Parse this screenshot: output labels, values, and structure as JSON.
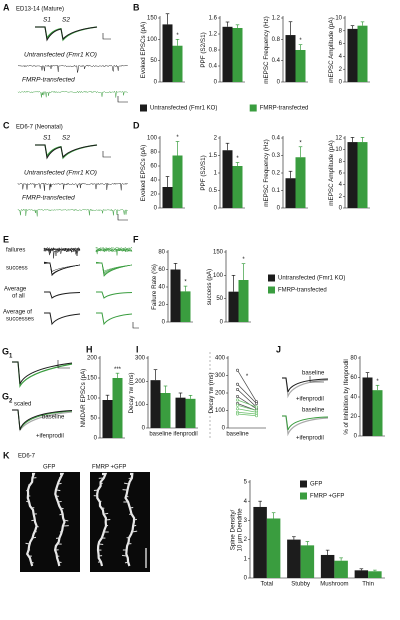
{
  "panels": {
    "A": {
      "letter": "A",
      "title": "ED13-14 (Mature)",
      "s1": "S1",
      "s2": "S2",
      "untransfected": "Untransfected (Fmr1 KO)",
      "transfected": "FMRP-transfected"
    },
    "B": {
      "letter": "B"
    },
    "C": {
      "letter": "C",
      "title": "ED6-7 (Neonatal)",
      "s1": "S1",
      "s2": "S2",
      "untransfected": "Untransfected (Fmr1 KO)",
      "transfected": "FMRP-transfected"
    },
    "D": {
      "letter": "D"
    },
    "E": {
      "letter": "E",
      "failures": "failures",
      "success": "success",
      "average_all": [
        "Average",
        "of all"
      ],
      "average_successes": [
        "Average of",
        "successes"
      ]
    },
    "F": {
      "letter": "F"
    },
    "G1": {
      "letter": "G",
      "index": "1"
    },
    "G2": {
      "letter": "G",
      "index": "2",
      "scaled": "scaled",
      "baseline": "baseline",
      "ifenprodil": "+ifenprodil"
    },
    "H": {
      "letter": "H"
    },
    "I": {
      "letter": "I"
    },
    "J": {
      "letter": "J",
      "labels": [
        "baseline",
        "+ifenprodil",
        "baseline",
        "+ifenprodil"
      ]
    },
    "K": {
      "letter": "K",
      "age": "ED6-7",
      "gfp": "GFP",
      "fmrp_gfp": "FMRP +GFP"
    }
  },
  "chart_data": [
    {
      "type": "bar",
      "ylabel": "Evoked EPSCs (pA)",
      "ylim": [
        0,
        150
      ],
      "yticks": [
        0,
        50,
        100,
        150
      ],
      "annotation": "*",
      "series": [
        {
          "name": "Untransfected (Fmr1 KO)",
          "color": "#1c1c1c",
          "values": [
            135
          ],
          "errors": [
            25
          ]
        },
        {
          "name": "FMRP-transfected",
          "color": "#3a9d3f",
          "values": [
            85
          ],
          "errors": [
            15
          ]
        }
      ]
    },
    {
      "type": "bar",
      "ylabel": "PPF (S2/S1)",
      "ylim": [
        0,
        1.6
      ],
      "yticks": [
        0,
        0.4,
        0.8,
        1.2,
        1.6
      ],
      "series": [
        {
          "color": "#1c1c1c",
          "values": [
            1.38
          ],
          "errors": [
            0.12
          ]
        },
        {
          "color": "#3a9d3f",
          "values": [
            1.35
          ],
          "errors": [
            0.08
          ]
        }
      ]
    },
    {
      "type": "bar",
      "ylabel": "mEPSC Frequency (Hz)",
      "ylim": [
        0,
        1.2
      ],
      "yticks": [
        0,
        0.4,
        0.8,
        1.2
      ],
      "annotation": "*",
      "series": [
        {
          "color": "#1c1c1c",
          "values": [
            0.88
          ],
          "errors": [
            0.25
          ]
        },
        {
          "color": "#3a9d3f",
          "values": [
            0.6
          ],
          "errors": [
            0.1
          ]
        }
      ]
    },
    {
      "type": "bar",
      "ylabel": "mEPSC Amplitude (pA)",
      "ylim": [
        0,
        10
      ],
      "yticks": [
        0,
        2,
        4,
        6,
        8,
        10
      ],
      "series": [
        {
          "color": "#1c1c1c",
          "values": [
            8.3
          ],
          "errors": [
            0.5
          ]
        },
        {
          "color": "#3a9d3f",
          "values": [
            8.8
          ],
          "errors": [
            0.6
          ]
        }
      ]
    },
    {
      "type": "bar",
      "ylabel": "Evoked EPSCs (pA)",
      "ylim": [
        0,
        100
      ],
      "yticks": [
        0,
        20,
        40,
        60,
        80,
        100
      ],
      "annotation": "*",
      "series": [
        {
          "color": "#1c1c1c",
          "values": [
            30
          ],
          "errors": [
            15
          ]
        },
        {
          "color": "#3a9d3f",
          "values": [
            75
          ],
          "errors": [
            20
          ]
        }
      ]
    },
    {
      "type": "bar",
      "ylabel": "PPF (S2/S1)",
      "ylim": [
        0,
        2
      ],
      "yticks": [
        0,
        0.5,
        1,
        1.5,
        2
      ],
      "annotation": "*",
      "series": [
        {
          "color": "#1c1c1c",
          "values": [
            1.65
          ],
          "errors": [
            0.2
          ]
        },
        {
          "color": "#3a9d3f",
          "values": [
            1.2
          ],
          "errors": [
            0.1
          ]
        }
      ]
    },
    {
      "type": "bar",
      "ylabel": "mEPSC Frequency (Hz)",
      "ylim": [
        0,
        0.4
      ],
      "yticks": [
        0,
        0.1,
        0.2,
        0.3,
        0.4
      ],
      "annotation": "*",
      "series": [
        {
          "color": "#1c1c1c",
          "values": [
            0.17
          ],
          "errors": [
            0.04
          ]
        },
        {
          "color": "#3a9d3f",
          "values": [
            0.29
          ],
          "errors": [
            0.06
          ]
        }
      ]
    },
    {
      "type": "bar",
      "ylabel": "mEPSC Amplitude (pA)",
      "ylim": [
        0,
        12
      ],
      "yticks": [
        0,
        2,
        4,
        6,
        8,
        10,
        12
      ],
      "series": [
        {
          "color": "#1c1c1c",
          "values": [
            11.3
          ],
          "errors": [
            0.8
          ]
        },
        {
          "color": "#3a9d3f",
          "values": [
            11.3
          ],
          "errors": [
            0.8
          ]
        }
      ]
    },
    {
      "type": "bar",
      "ylabel": "Failure Rate (%)",
      "ylim": [
        0,
        80
      ],
      "yticks": [
        0,
        20,
        40,
        60,
        80
      ],
      "annotation": "*",
      "series": [
        {
          "name": "Untransfected (Fmr1 KO)",
          "color": "#1c1c1c",
          "values": [
            60
          ],
          "errors": [
            7
          ]
        },
        {
          "name": "FMRP-transfected",
          "color": "#3a9d3f",
          "values": [
            35
          ],
          "errors": [
            6
          ]
        }
      ]
    },
    {
      "type": "bar",
      "ylabel": "success (pA)",
      "ylim": [
        0,
        150
      ],
      "yticks": [
        0,
        50,
        100,
        150
      ],
      "annotation": "*",
      "series": [
        {
          "color": "#1c1c1c",
          "values": [
            65
          ],
          "errors": [
            35
          ]
        },
        {
          "color": "#3a9d3f",
          "values": [
            90
          ],
          "errors": [
            35
          ]
        }
      ]
    },
    {
      "type": "bar",
      "ylabel": "NMDAR EPSCs (pA)",
      "ylim": [
        0,
        200
      ],
      "yticks": [
        0,
        50,
        100,
        150,
        200
      ],
      "annotation": "***",
      "series": [
        {
          "color": "#1c1c1c",
          "values": [
            95
          ],
          "errors": [
            12
          ]
        },
        {
          "color": "#3a9d3f",
          "values": [
            150
          ],
          "errors": [
            12
          ]
        }
      ]
    },
    {
      "type": "bar",
      "ylabel": "Decay τw (ms)",
      "ylim": [
        0,
        300
      ],
      "yticks": [
        0,
        100,
        200,
        300
      ],
      "categories": [
        "baseline",
        "ifenprodil"
      ],
      "series": [
        {
          "color": "#1c1c1c",
          "values": [
            205,
            130
          ],
          "errors": [
            45,
            20
          ]
        },
        {
          "color": "#3a9d3f",
          "values": [
            150,
            125
          ],
          "errors": [
            30,
            15
          ]
        }
      ]
    },
    {
      "type": "line",
      "ylabel": "Decay τw (ms)",
      "ylim": [
        0,
        400
      ],
      "yticks": [
        0,
        100,
        200,
        300,
        400
      ],
      "categories": [
        "baseline",
        null
      ],
      "annotation": "*",
      "series": [
        {
          "color": "#444444",
          "values": [
            330,
            150
          ]
        },
        {
          "color": "#444444",
          "values": [
            250,
            140
          ]
        },
        {
          "color": "#444444",
          "values": [
            220,
            120
          ]
        },
        {
          "color": "#444444",
          "values": [
            180,
            110
          ]
        },
        {
          "color": "#444444",
          "values": [
            140,
            100
          ]
        },
        {
          "color": "#6abf6a",
          "values": [
            160,
            120
          ]
        },
        {
          "color": "#6abf6a",
          "values": [
            130,
            100
          ]
        },
        {
          "color": "#6abf6a",
          "values": [
            110,
            90
          ]
        },
        {
          "color": "#6abf6a",
          "values": [
            90,
            80
          ]
        },
        {
          "color": "#6abf6a",
          "values": [
            80,
            70
          ]
        }
      ]
    },
    {
      "type": "bar",
      "ylabel": "% of Inhibition by Ifenprodil",
      "ylim": [
        0,
        80
      ],
      "yticks": [
        0,
        20,
        40,
        60,
        80
      ],
      "annotation": "*",
      "series": [
        {
          "color": "#1c1c1c",
          "values": [
            60
          ],
          "errors": [
            5
          ]
        },
        {
          "color": "#3a9d3f",
          "values": [
            47
          ],
          "errors": [
            5
          ]
        }
      ]
    },
    {
      "type": "bar",
      "ylabel": [
        "Spine Density/",
        "10 µm Dendrite"
      ],
      "ylim": [
        0,
        5
      ],
      "yticks": [
        0,
        1,
        2,
        3,
        4,
        5
      ],
      "categories": [
        "Total",
        "Stubby",
        "Mushroom",
        "Thin"
      ],
      "series": [
        {
          "name": "GFP",
          "color": "#1c1c1c",
          "values": [
            3.7,
            2.0,
            1.2,
            0.4
          ],
          "errors": [
            0.3,
            0.15,
            0.25,
            0.08
          ]
        },
        {
          "name": "FMRP +GFP",
          "color": "#3a9d3f",
          "values": [
            3.1,
            1.7,
            0.9,
            0.35
          ],
          "errors": [
            0.3,
            0.2,
            0.15,
            0.06
          ]
        }
      ]
    }
  ]
}
